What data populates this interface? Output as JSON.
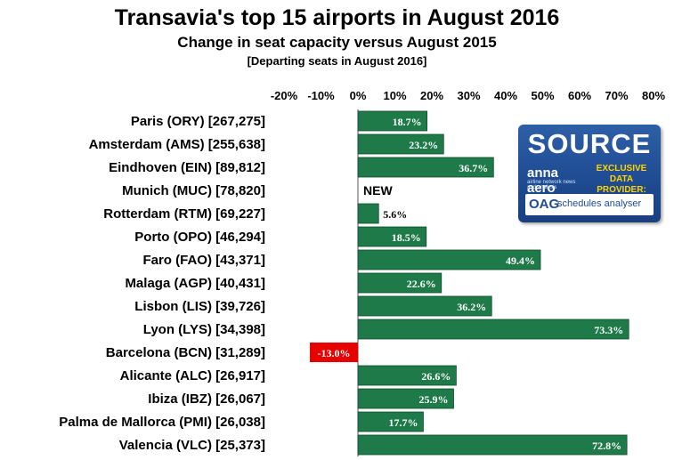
{
  "titles": {
    "title": "Transavia's top 15 airports in August 2016",
    "subtitle": "Change in seat capacity versus August 2015",
    "note": "[Departing seats in August 2016]"
  },
  "source_logo": {
    "source": "SOURCE",
    "brand": "anna aero",
    "brand_tag": "airline network news and analysis",
    "exclusive": "EXCLUSIVE DATA PROVIDER:",
    "oag": "OAG",
    "oag_product": "schedules analyser"
  },
  "chart_data": {
    "type": "bar",
    "orientation": "horizontal",
    "categories": [
      "Paris (ORY) [267,275]",
      "Amsterdam (AMS) [255,638]",
      "Eindhoven (EIN) [89,812]",
      "Munich (MUC) [78,820]",
      "Rotterdam (RTM) [69,227]",
      "Porto (OPO) [46,294]",
      "Faro (FAO) [43,371]",
      "Malaga (AGP) [40,431]",
      "Lisbon (LIS) [39,726]",
      "Lyon (LYS) [34,398]",
      "Barcelona (BCN) [31,289]",
      "Alicante (ALC) [26,917]",
      "Ibiza (IBZ) [26,067]",
      "Palma de Mallorca (PMI) [26,038]",
      "Valencia (VLC) [25,373]"
    ],
    "values": [
      18.7,
      23.2,
      36.7,
      null,
      5.6,
      18.5,
      49.4,
      22.6,
      36.2,
      73.3,
      -13.0,
      26.6,
      25.9,
      17.7,
      72.8
    ],
    "value_labels": [
      "18.7%",
      "23.2%",
      "36.7%",
      "NEW",
      "5.6%",
      "18.5%",
      "49.4%",
      "22.6%",
      "36.2%",
      "73.3%",
      "-13.0%",
      "26.6%",
      "25.9%",
      "17.7%",
      "72.8%"
    ],
    "x_ticks": [
      "-20%",
      "-10%",
      "0%",
      "10%",
      "20%",
      "30%",
      "40%",
      "50%",
      "60%",
      "70%",
      "80%"
    ],
    "xlim": [
      -20,
      80
    ],
    "grid": false,
    "colors": {
      "positive": "#1f7a4a",
      "negative": "#e60000",
      "label_on_bar": "#ffffff",
      "label_outside": "#000000"
    }
  }
}
